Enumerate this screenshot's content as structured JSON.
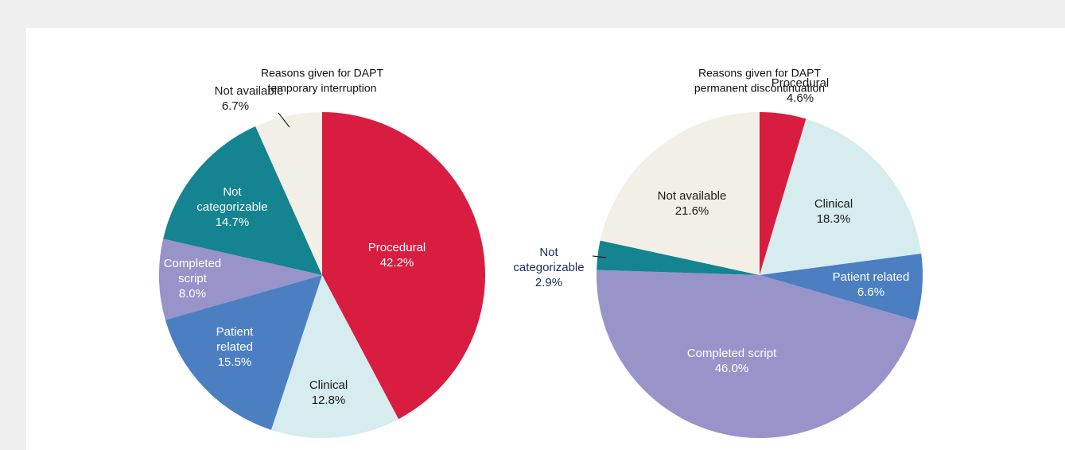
{
  "chart_data": [
    {
      "type": "pie",
      "title": [
        "Reasons given for DAPT",
        "temporary interruption"
      ],
      "categories": [
        "Procedural",
        "Clinical",
        "Patient related",
        "Completed script",
        "Not categorizable",
        "Not available"
      ],
      "values": [
        42.2,
        12.8,
        15.5,
        8.0,
        14.7,
        6.7
      ],
      "value_labels": [
        "42.2%",
        "12.8%",
        "15.5%",
        "8.0%",
        "14.7%",
        "6.7%"
      ],
      "colors": [
        "#d91d40",
        "#d7ecef",
        "#4b7fc2",
        "#9893c9",
        "#148490",
        "#f2f0e6"
      ]
    },
    {
      "type": "pie",
      "title": [
        "Reasons given for DAPT",
        "permanent discontinuation"
      ],
      "categories": [
        "Procedural",
        "Clinical",
        "Patient related",
        "Completed script",
        "Not categorizable",
        "Not available"
      ],
      "values": [
        4.6,
        18.3,
        6.6,
        46.0,
        2.9,
        21.6
      ],
      "value_labels": [
        "4.6%",
        "18.3%",
        "6.6%",
        "46.0%",
        "2.9%",
        "21.6%"
      ],
      "colors": [
        "#d91d40",
        "#d7ecef",
        "#4b7fc2",
        "#9893c9",
        "#148490",
        "#f2f0e6"
      ]
    }
  ]
}
